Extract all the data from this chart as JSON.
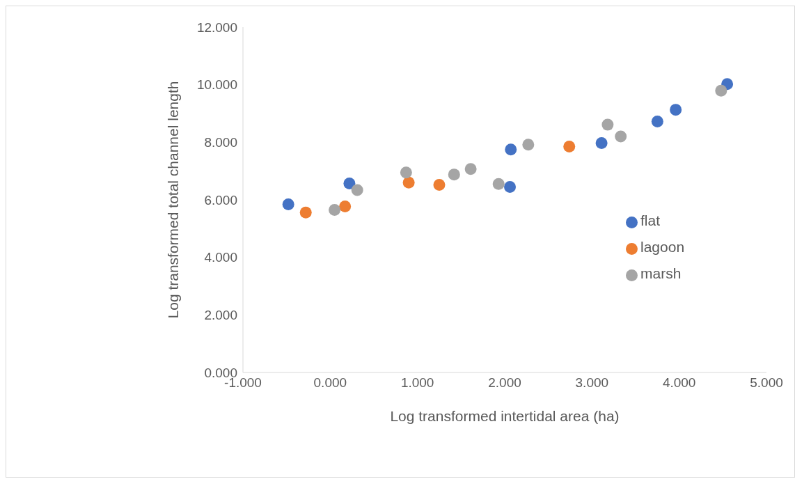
{
  "chart_data": {
    "type": "scatter",
    "xlabel": "Log transformed intertidal area (ha)",
    "ylabel": "Log transformed  total channel length",
    "xlim": [
      -1,
      5
    ],
    "xticks": [
      {
        "value": -1,
        "label": "-1.000"
      },
      {
        "value": 0,
        "label": "0.000"
      },
      {
        "value": 1,
        "label": "1.000"
      },
      {
        "value": 2,
        "label": "2.000"
      },
      {
        "value": 3,
        "label": "3.000"
      },
      {
        "value": 4,
        "label": "4.000"
      },
      {
        "value": 5,
        "label": "5.000"
      }
    ],
    "ylim": [
      0,
      12
    ],
    "yticks": [
      {
        "value": 0,
        "label": "0.000"
      },
      {
        "value": 2,
        "label": "2.000"
      },
      {
        "value": 4,
        "label": "4.000"
      },
      {
        "value": 6,
        "label": "6.000"
      },
      {
        "value": 8,
        "label": "8.000"
      },
      {
        "value": 10,
        "label": "10.000"
      },
      {
        "value": 12,
        "label": "12.000"
      }
    ],
    "grid": false,
    "legend": "right",
    "marker": "circle",
    "series": [
      {
        "name": "flat",
        "color": "#4472c4",
        "x": [
          -0.48,
          0.22,
          2.07,
          2.06,
          3.11,
          3.75,
          3.96,
          4.55
        ],
        "values": [
          5.84,
          6.57,
          7.75,
          6.45,
          7.97,
          8.72,
          9.13,
          10.02
        ]
      },
      {
        "name": "lagoon",
        "color": "#ed7d31",
        "x": [
          -0.28,
          0.17,
          0.9,
          1.25,
          2.74
        ],
        "values": [
          5.56,
          5.77,
          6.6,
          6.52,
          7.85
        ]
      },
      {
        "name": "marsh",
        "color": "#a5a5a5",
        "x": [
          0.05,
          0.31,
          0.87,
          1.42,
          1.61,
          1.93,
          2.27,
          3.18,
          3.33,
          4.48
        ],
        "values": [
          5.65,
          6.34,
          6.95,
          6.88,
          7.07,
          6.55,
          7.92,
          8.61,
          8.2,
          9.79
        ]
      }
    ]
  }
}
